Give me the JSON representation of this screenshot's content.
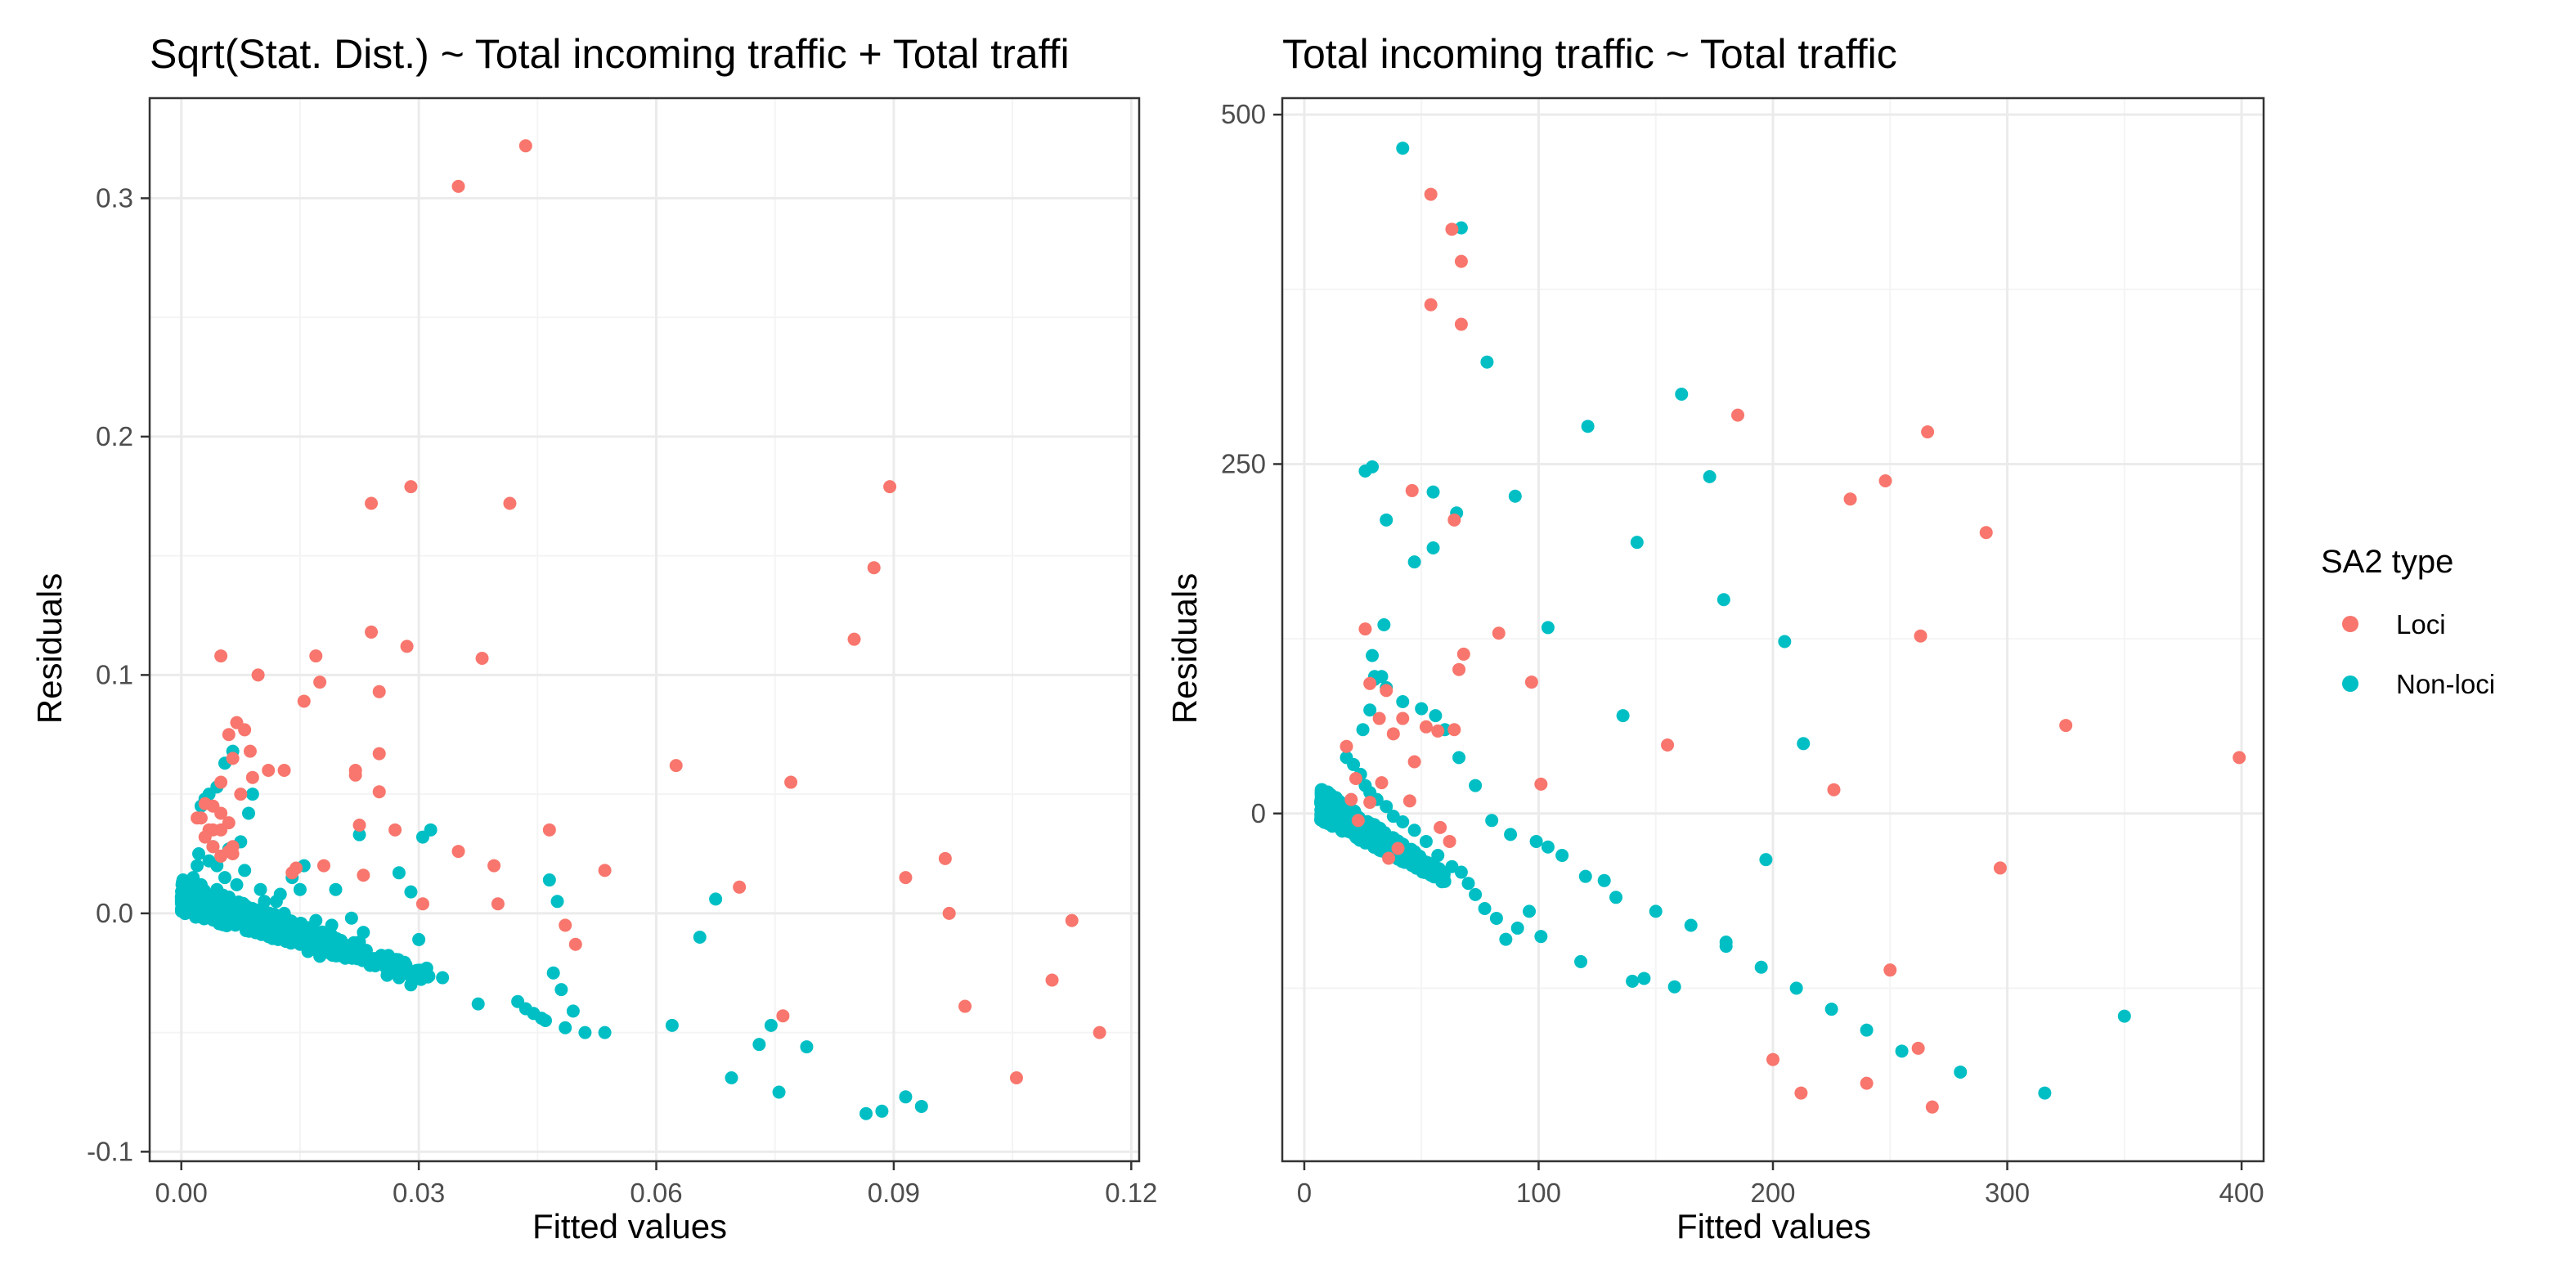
{
  "colors": {
    "Loci": "#F8766D",
    "Non-loci": "#00BFC4",
    "grid_major": "#EBEBEB",
    "grid_minor": "#F4F4F4",
    "panel_border": "#333333"
  },
  "legend": {
    "title": "SA2 type",
    "entries": [
      {
        "label": "Loci",
        "color": "#F8766D"
      },
      {
        "label": "Non-loci",
        "color": "#00BFC4"
      }
    ],
    "position": "right"
  },
  "chart_data": [
    {
      "type": "scatter",
      "title": "Sqrt(Stat. Dist.) ~ Total incoming traffic + Total traffi",
      "xlabel": "Fitted values",
      "ylabel": "Residuals",
      "xlim": [
        -0.004,
        0.121
      ],
      "ylim": [
        -0.104,
        0.342
      ],
      "xticks": [
        0.0,
        0.03,
        0.06,
        0.09,
        0.12
      ],
      "xtick_labels": [
        "0.00",
        "0.03",
        "0.06",
        "0.09",
        "0.12"
      ],
      "xminor": [
        0.015,
        0.045,
        0.075,
        0.105
      ],
      "yticks": [
        -0.1,
        0.0,
        0.1,
        0.2,
        0.3
      ],
      "ytick_labels": [
        "-0.1",
        "0.0",
        "0.1",
        "0.2",
        "0.3"
      ],
      "yminor": [
        -0.05,
        0.05,
        0.15,
        0.25
      ],
      "grid": true,
      "series": [
        {
          "name": "Loci",
          "color": "#F8766D",
          "x": [
            0.035,
            0.0435,
            0.024,
            0.029,
            0.0415,
            0.0895,
            0.0875,
            0.085,
            0.024,
            0.0285,
            0.038,
            0.025,
            0.005,
            0.0097,
            0.017,
            0.0175,
            0.0155,
            0.025,
            0.007,
            0.008,
            0.006,
            0.0087,
            0.025,
            0.022,
            0.022,
            0.013,
            0.011,
            0.0065,
            0.009,
            0.005,
            0.0075,
            0.003,
            0.002,
            0.004,
            0.005,
            0.004,
            0.0065,
            0.006,
            0.0225,
            0.027,
            0.0465,
            0.0625,
            0.077,
            0.035,
            0.0395,
            0.023,
            0.018,
            0.0145,
            0.014,
            0.006,
            0.005,
            0.0035,
            0.003,
            0.0065,
            0.005,
            0.004,
            0.0025,
            0.0705,
            0.0535,
            0.04,
            0.0305,
            0.0485,
            0.0498,
            0.076,
            0.0965,
            0.0915,
            0.097,
            0.099,
            0.1125,
            0.11,
            0.116,
            0.1055
          ],
          "y": [
            0.305,
            0.322,
            0.172,
            0.179,
            0.172,
            0.179,
            0.145,
            0.115,
            0.118,
            0.112,
            0.107,
            0.093,
            0.108,
            0.1,
            0.108,
            0.097,
            0.089,
            0.067,
            0.08,
            0.077,
            0.075,
            0.068,
            0.051,
            0.06,
            0.058,
            0.06,
            0.06,
            0.065,
            0.057,
            0.055,
            0.05,
            0.046,
            0.04,
            0.045,
            0.042,
            0.035,
            0.028,
            0.026,
            0.037,
            0.035,
            0.035,
            0.062,
            0.055,
            0.026,
            0.02,
            0.016,
            0.02,
            0.019,
            0.017,
            0.038,
            0.035,
            0.035,
            0.032,
            0.025,
            0.024,
            0.028,
            0.04,
            0.011,
            0.018,
            0.004,
            0.004,
            -0.005,
            -0.013,
            -0.043,
            0.023,
            0.015,
            0.0,
            -0.039,
            -0.003,
            -0.028,
            -0.05,
            -0.069
          ]
        },
        {
          "name": "Non-loci",
          "color": "#00BFC4",
          "x": [
            0.0045,
            0.0035,
            0.003,
            0.0025,
            0.0055,
            0.0065,
            0.0085,
            0.009,
            0.0075,
            0.006,
            0.0035,
            0.004,
            0.0045,
            0.0022,
            0.002,
            0.0015,
            0.0025,
            0.003,
            0.0045,
            0.0055,
            0.007,
            0.008,
            0.01,
            0.012,
            0.014,
            0.0155,
            0.015,
            0.0125,
            0.0105,
            0.009,
            0.013,
            0.017,
            0.019,
            0.0215,
            0.023,
            0.0225,
            0.02,
            0.017,
            0.0135,
            0.015,
            0.016,
            0.0175,
            0.0185,
            0.02,
            0.0225,
            0.0245,
            0.026,
            0.0275,
            0.029,
            0.03,
            0.031,
            0.033,
            0.0375,
            0.0425,
            0.0445,
            0.0455,
            0.046,
            0.047,
            0.048,
            0.0485,
            0.0495,
            0.051,
            0.0535,
            0.0435,
            0.0305,
            0.0475,
            0.0465,
            0.0315,
            0.0275,
            0.029,
            0.0655,
            0.0675,
            0.062,
            0.0745,
            0.073,
            0.079,
            0.0755,
            0.0695,
            0.0865,
            0.0885,
            0.0915,
            0.0935,
            0.0225,
            0.0195
          ],
          "y": [
            0.053,
            0.05,
            0.048,
            0.045,
            0.063,
            0.068,
            0.042,
            0.05,
            0.03,
            0.027,
            0.022,
            0.028,
            0.02,
            0.025,
            0.02,
            0.015,
            0.012,
            0.008,
            0.01,
            0.015,
            0.012,
            0.018,
            0.01,
            0.005,
            0.015,
            0.02,
            0.01,
            0.008,
            0.005,
            0.002,
            0.0,
            -0.003,
            -0.005,
            -0.002,
            -0.008,
            -0.012,
            -0.013,
            -0.009,
            -0.006,
            -0.013,
            -0.016,
            -0.018,
            -0.013,
            -0.016,
            -0.018,
            -0.022,
            -0.026,
            -0.027,
            -0.03,
            -0.011,
            -0.023,
            -0.027,
            -0.038,
            -0.037,
            -0.042,
            -0.044,
            -0.045,
            -0.025,
            -0.032,
            -0.048,
            -0.041,
            -0.05,
            -0.05,
            -0.04,
            0.032,
            0.005,
            0.014,
            0.035,
            0.017,
            0.009,
            -0.01,
            0.006,
            -0.047,
            -0.047,
            -0.055,
            -0.056,
            -0.075,
            -0.069,
            -0.084,
            -0.083,
            -0.077,
            -0.081,
            0.033,
            0.01
          ],
          "dense_band": {
            "x_range": [
              0.0,
              0.0315
            ],
            "y_at_x_start": 0.0,
            "y_at_x_end": -0.029,
            "spread": 0.012
          }
        }
      ]
    },
    {
      "type": "scatter",
      "title": "Total incoming traffic ~ Total traffic",
      "xlabel": "Fitted values",
      "ylabel": "Residuals",
      "xlim": [
        -9.4,
        409.4
      ],
      "ylim": [
        -248.8,
        511.8
      ],
      "xticks": [
        0,
        100,
        200,
        300,
        400
      ],
      "xtick_labels": [
        "0",
        "100",
        "200",
        "300",
        "400"
      ],
      "xminor": [
        50,
        150,
        250,
        350
      ],
      "yticks": [
        0,
        250,
        500
      ],
      "ytick_labels": [
        "0",
        "250",
        "500"
      ],
      "yminor": [
        -125,
        125,
        375
      ],
      "grid": true,
      "series": [
        {
          "name": "Loci",
          "color": "#F8766D",
          "x": [
            54,
            63,
            67,
            67,
            54,
            64,
            185,
            266,
            248,
            233,
            263,
            291,
            325,
            399,
            297,
            226,
            250,
            262,
            240,
            212,
            200,
            268,
            155,
            101,
            97,
            83,
            68,
            66,
            64,
            57,
            46,
            42,
            38,
            32,
            26,
            28,
            22,
            20,
            18,
            35,
            40,
            47,
            52,
            58,
            62,
            45,
            36,
            28,
            23,
            33
          ],
          "y": [
            443,
            418,
            395,
            350,
            364,
            210,
            285,
            273,
            238,
            225,
            127,
            201,
            63,
            40,
            -39,
            17,
            -112,
            -168,
            -193,
            -200,
            -176,
            -210,
            49,
            21,
            94,
            129,
            114,
            103,
            60,
            59,
            231,
            68,
            57,
            68,
            132,
            93,
            25,
            10,
            48,
            88,
            -25,
            37,
            62,
            -10,
            -20,
            9,
            -32,
            8,
            -5,
            22
          ]
        },
        {
          "name": "Non-loci",
          "color": "#00BFC4",
          "x": [
            42,
            67,
            78,
            161,
            121,
            173,
            142,
            179,
            136,
            205,
            213,
            197,
            180,
            158,
            128,
            140,
            145,
            118,
            104,
            101,
            96,
            91,
            86,
            82,
            77,
            73,
            70,
            67,
            63,
            57,
            52,
            47,
            42,
            38,
            35,
            31,
            28,
            26,
            24,
            21,
            30,
            33,
            35,
            42,
            50,
            56,
            60,
            66,
            73,
            80,
            88,
            99,
            110,
            120,
            133,
            150,
            165,
            180,
            195,
            210,
            225,
            240,
            255,
            280,
            316,
            350,
            26,
            29,
            35,
            55,
            65,
            90,
            104,
            55,
            47,
            34,
            29,
            30,
            25,
            28,
            18
          ],
          "y": [
            476,
            419,
            323,
            300,
            277,
            241,
            194,
            153,
            70,
            123,
            50,
            -33,
            -92,
            -124,
            -48,
            -120,
            -118,
            -106,
            -24,
            -88,
            -70,
            -82,
            -90,
            -75,
            -68,
            -58,
            -50,
            -42,
            -38,
            -30,
            -20,
            -12,
            -6,
            -2,
            5,
            10,
            15,
            20,
            28,
            35,
            96,
            98,
            90,
            80,
            75,
            70,
            60,
            40,
            20,
            -5,
            -15,
            -20,
            -30,
            -45,
            -60,
            -70,
            -80,
            -95,
            -110,
            -125,
            -140,
            -155,
            -170,
            -185,
            -200,
            -145,
            245,
            248,
            210,
            230,
            215,
            227,
            133,
            190,
            180,
            135,
            113,
            98,
            60,
            74,
            40
          ],
          "dense_band": {
            "x_range": [
              7,
              60
            ],
            "y_at_x_start": -5,
            "y_at_x_end": -50,
            "spread": 20
          }
        }
      ]
    }
  ]
}
